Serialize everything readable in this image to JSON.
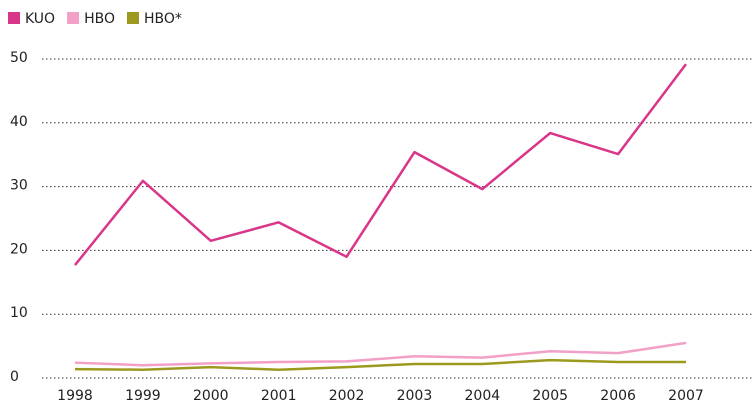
{
  "chart_data": {
    "type": "line",
    "categories": [
      "1998",
      "1999",
      "2000",
      "2001",
      "2002",
      "2003",
      "2004",
      "2005",
      "2006",
      "2007"
    ],
    "series": [
      {
        "name": "KUO",
        "color": "#d9368a",
        "values": [
          17.7,
          30.9,
          21.5,
          24.4,
          19.0,
          35.4,
          29.6,
          38.4,
          35.1,
          49.2
        ]
      },
      {
        "name": "HBO",
        "color": "#f2a0c8",
        "values": [
          2.4,
          2.0,
          2.3,
          2.5,
          2.6,
          3.4,
          3.2,
          4.2,
          3.9,
          5.5
        ]
      },
      {
        "name": "HBO*",
        "color": "#9c9a1e",
        "values": [
          1.4,
          1.3,
          1.7,
          1.3,
          1.7,
          2.2,
          2.2,
          2.8,
          2.5,
          2.5
        ]
      }
    ],
    "ylim": [
      0,
      50
    ],
    "yticks": [
      0,
      10,
      20,
      30,
      40,
      50
    ],
    "grid": true
  }
}
